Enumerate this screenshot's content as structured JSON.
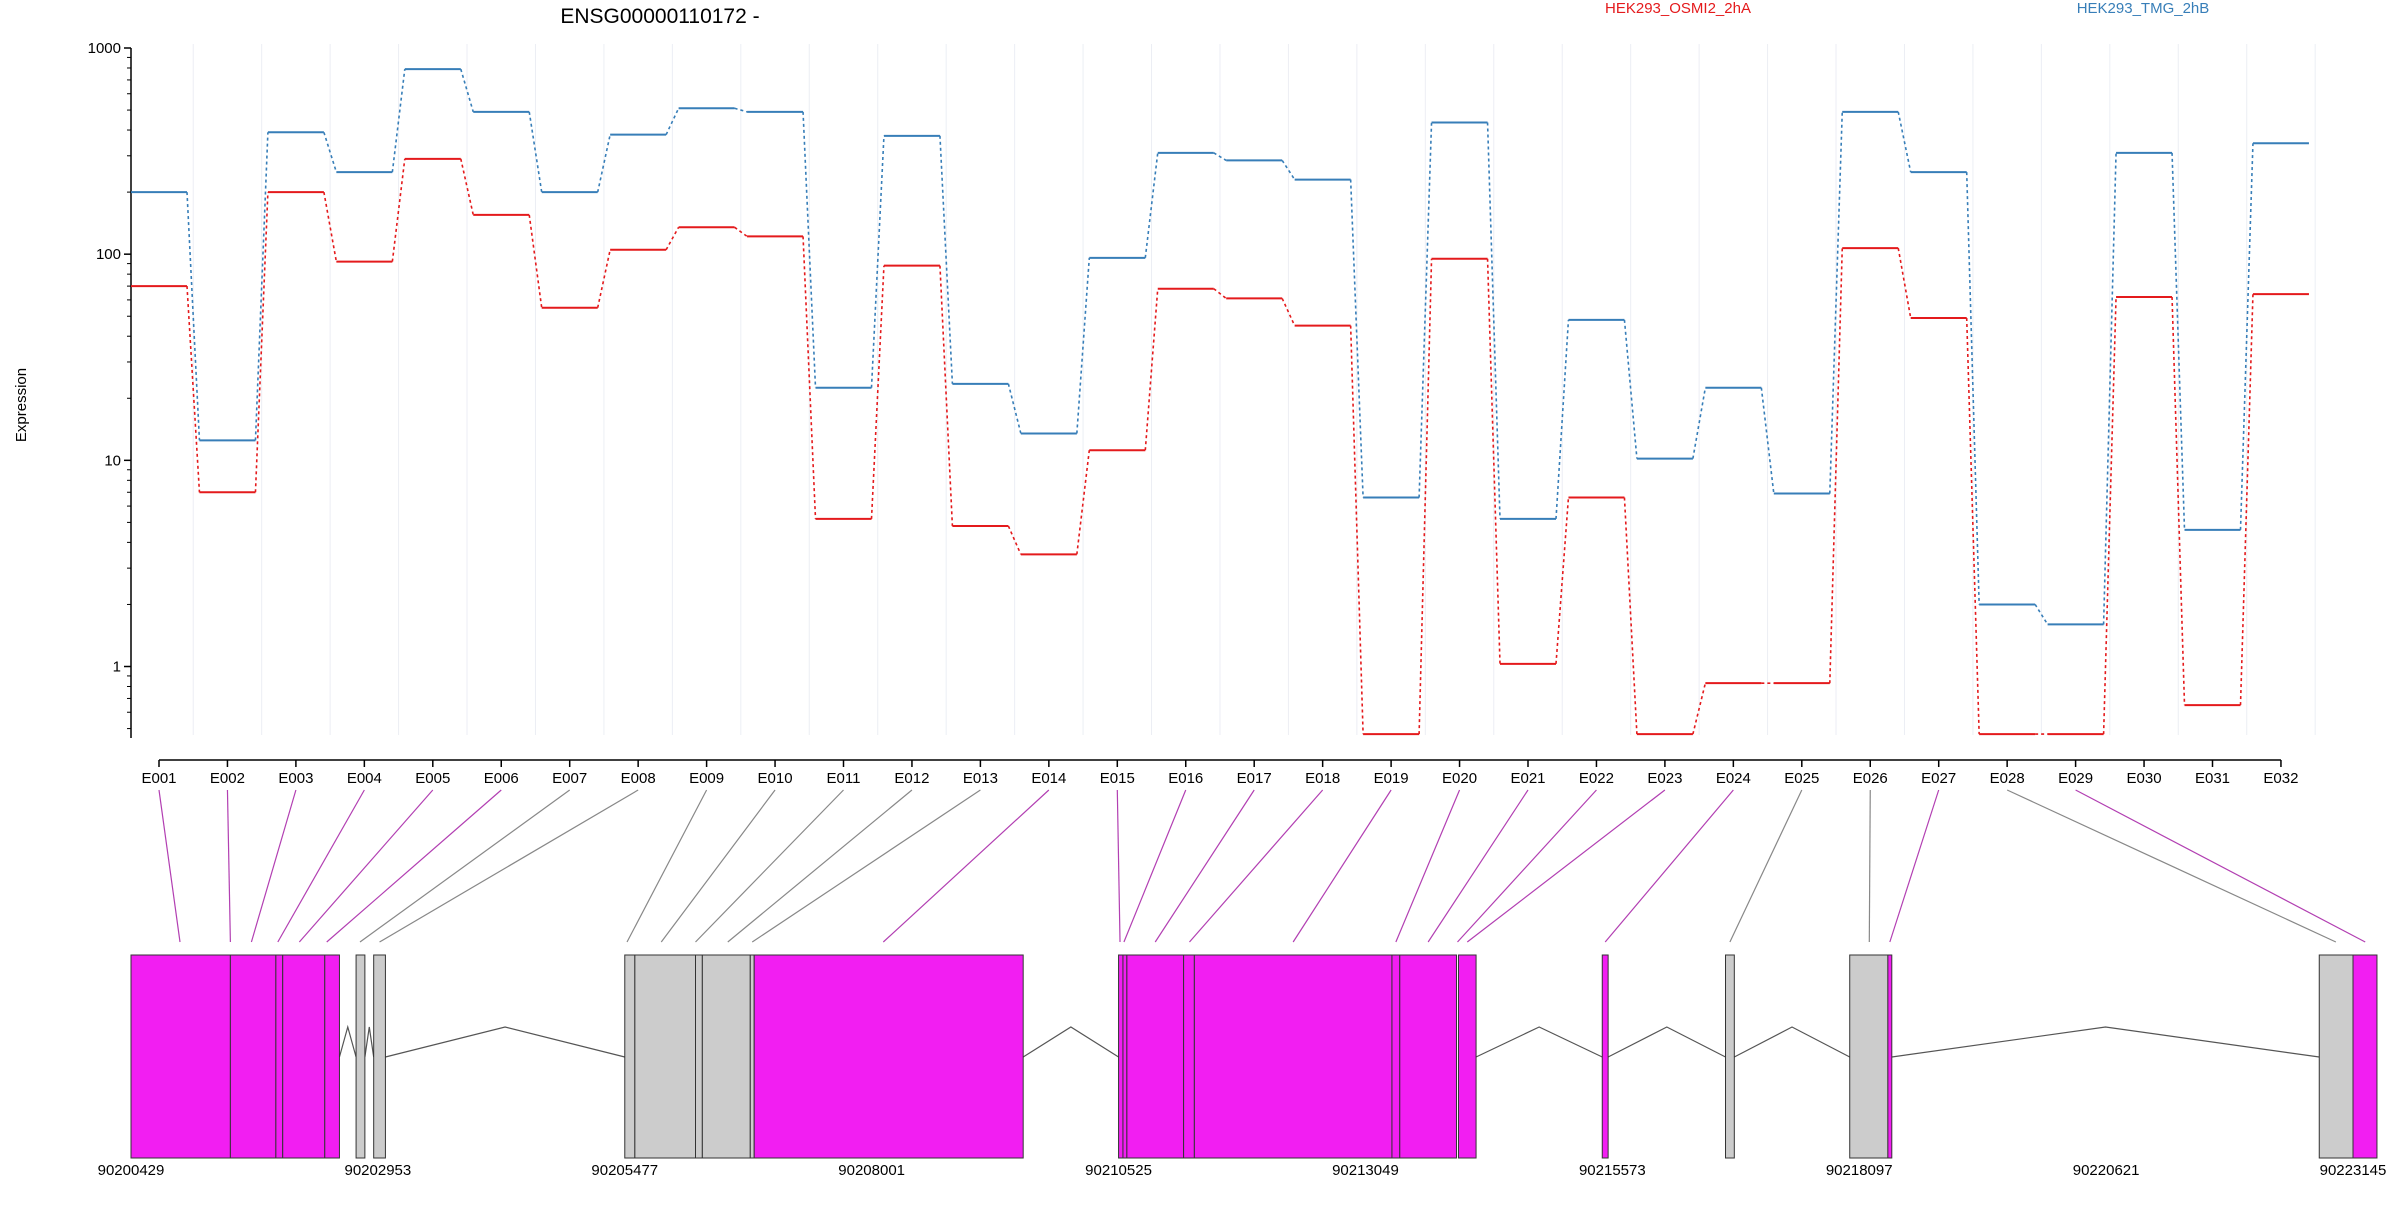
{
  "chart_data": {
    "type": "line",
    "title": "ENSG00000110172 -",
    "ylabel": "Expression",
    "xlabel": "",
    "y_scale": "log",
    "ylim": [
      0.45,
      1000
    ],
    "y_ticks": [
      1,
      10,
      100,
      1000
    ],
    "y_tick_labels": [
      "1",
      "10",
      "100",
      "1000"
    ],
    "grid": "vertical",
    "legend_placement": "top-right",
    "categories": [
      "E001",
      "E002",
      "E003",
      "E004",
      "E005",
      "E006",
      "E007",
      "E008",
      "E009",
      "E010",
      "E011",
      "E012",
      "E013",
      "E014",
      "E015",
      "E016",
      "E017",
      "E018",
      "E019",
      "E020",
      "E021",
      "E022",
      "E023",
      "E024",
      "E025",
      "E026",
      "E027",
      "E028",
      "E029",
      "E030",
      "E031",
      "E032"
    ],
    "series": [
      {
        "name": "HEK293_OSMI2_2hA",
        "color": "#e41a1c",
        "values": [
          70,
          7,
          200,
          92,
          290,
          155,
          55,
          105,
          135,
          122,
          5.2,
          88,
          4.8,
          3.5,
          11.2,
          68,
          61,
          45,
          0.47,
          95,
          1.03,
          6.6,
          0.47,
          0.83,
          0.83,
          107,
          49,
          0.47,
          0.47,
          62,
          0.65,
          64
        ]
      },
      {
        "name": "HEK293_TMG_2hB",
        "color": "#377eb8",
        "values": [
          200,
          12.5,
          390,
          250,
          790,
          490,
          200,
          380,
          510,
          490,
          22.5,
          375,
          23.5,
          13.5,
          96,
          310,
          285,
          230,
          6.6,
          435,
          5.2,
          48,
          10.2,
          22.5,
          6.9,
          490,
          250,
          2.0,
          1.6,
          310,
          4.6,
          345
        ]
      }
    ],
    "gene_model": {
      "genomic_ticks": [
        90200429,
        90202953,
        90205477,
        90208001,
        90210525,
        90213049,
        90215573,
        90218097,
        90220621,
        90223145
      ],
      "highlight_color": "#f21ef2",
      "base_color": "#cccccc",
      "exons": [
        {
          "id": "E001",
          "start": 90200429,
          "end": 90201445,
          "highlight": true
        },
        {
          "id": "E002",
          "start": 90201445,
          "end": 90201910,
          "highlight": true
        },
        {
          "id": "E003",
          "start": 90201910,
          "end": 90201980,
          "highlight": true
        },
        {
          "id": "E004",
          "start": 90201980,
          "end": 90202410,
          "highlight": true
        },
        {
          "id": "E005",
          "start": 90202410,
          "end": 90202560,
          "highlight": true
        },
        {
          "id": "E006",
          "start": 90202730,
          "end": 90202820,
          "highlight": false
        },
        {
          "id": "E007",
          "start": 90202910,
          "end": 90203030,
          "highlight": false
        },
        {
          "id": "E008",
          "start": 90205477,
          "end": 90205580,
          "highlight": false
        },
        {
          "id": "E009",
          "start": 90205580,
          "end": 90206200,
          "highlight": false
        },
        {
          "id": "E010",
          "start": 90206200,
          "end": 90206270,
          "highlight": false
        },
        {
          "id": "E011",
          "start": 90206270,
          "end": 90206760,
          "highlight": false
        },
        {
          "id": "E012",
          "start": 90206760,
          "end": 90206800,
          "highlight": false
        },
        {
          "id": "E013",
          "start": 90206800,
          "end": 90209550,
          "highlight": true
        },
        {
          "id": "E014",
          "start": 90210525,
          "end": 90210570,
          "highlight": true
        },
        {
          "id": "E015",
          "start": 90210570,
          "end": 90210610,
          "highlight": true
        },
        {
          "id": "E016",
          "start": 90210610,
          "end": 90211190,
          "highlight": true
        },
        {
          "id": "E017",
          "start": 90211190,
          "end": 90211300,
          "highlight": true
        },
        {
          "id": "E018",
          "start": 90211300,
          "end": 90213320,
          "highlight": true
        },
        {
          "id": "E019",
          "start": 90213320,
          "end": 90213400,
          "highlight": true
        },
        {
          "id": "E020",
          "start": 90213400,
          "end": 90213980,
          "highlight": true
        },
        {
          "id": "E021",
          "start": 90214000,
          "end": 90214180,
          "highlight": true
        },
        {
          "id": "E022",
          "start": 90215470,
          "end": 90215530,
          "highlight": true
        },
        {
          "id": "E023",
          "start": 90216730,
          "end": 90216820,
          "highlight": false
        },
        {
          "id": "E024",
          "start": 90218000,
          "end": 90218390,
          "highlight": false
        },
        {
          "id": "E025",
          "start": 90218390,
          "end": 90218430,
          "highlight": true
        },
        {
          "id": "E026",
          "start": 90222800,
          "end": 90223145,
          "highlight": false
        },
        {
          "id": "E027",
          "start": 90223145,
          "end": 90223390,
          "highlight": true
        }
      ],
      "connectors": [
        {
          "label": "E001",
          "exon_x": 90200930,
          "highlight": true
        },
        {
          "label": "E002",
          "exon_x": 90201445,
          "highlight": true
        },
        {
          "label": "E003",
          "exon_x": 90201660,
          "highlight": true
        },
        {
          "label": "E004",
          "exon_x": 90201930,
          "highlight": true
        },
        {
          "label": "E005",
          "exon_x": 90202150,
          "highlight": true
        },
        {
          "label": "E006",
          "exon_x": 90202430,
          "highlight": true
        },
        {
          "label": "E007",
          "exon_x": 90202770,
          "highlight": false
        },
        {
          "label": "E008",
          "exon_x": 90202970,
          "highlight": false
        },
        {
          "label": "E009",
          "exon_x": 90205500,
          "highlight": false
        },
        {
          "label": "E010",
          "exon_x": 90205850,
          "highlight": false
        },
        {
          "label": "E011",
          "exon_x": 90206200,
          "highlight": false
        },
        {
          "label": "E012",
          "exon_x": 90206530,
          "highlight": false
        },
        {
          "label": "E013",
          "exon_x": 90206780,
          "highlight": false
        },
        {
          "label": "E014",
          "exon_x": 90208120,
          "highlight": true
        },
        {
          "label": "E015",
          "exon_x": 90210540,
          "highlight": true
        },
        {
          "label": "E016",
          "exon_x": 90210580,
          "highlight": true
        },
        {
          "label": "E017",
          "exon_x": 90210900,
          "highlight": true
        },
        {
          "label": "E018",
          "exon_x": 90211250,
          "highlight": true
        },
        {
          "label": "E019",
          "exon_x": 90212310,
          "highlight": true
        },
        {
          "label": "E020",
          "exon_x": 90213360,
          "highlight": true
        },
        {
          "label": "E021",
          "exon_x": 90213690,
          "highlight": true
        },
        {
          "label": "E022",
          "exon_x": 90213990,
          "highlight": true
        },
        {
          "label": "E023",
          "exon_x": 90214090,
          "highlight": true
        },
        {
          "label": "E024",
          "exon_x": 90215500,
          "highlight": true
        },
        {
          "label": "E025",
          "exon_x": 90216775,
          "highlight": false
        },
        {
          "label": "E026",
          "exon_x": 90218200,
          "highlight": false
        },
        {
          "label": "E027",
          "exon_x": 90218410,
          "highlight": true
        },
        {
          "label": "E028",
          "exon_x": 90222970,
          "highlight": false
        },
        {
          "label": "E029",
          "exon_x": 90223270,
          "highlight": true
        }
      ]
    }
  }
}
